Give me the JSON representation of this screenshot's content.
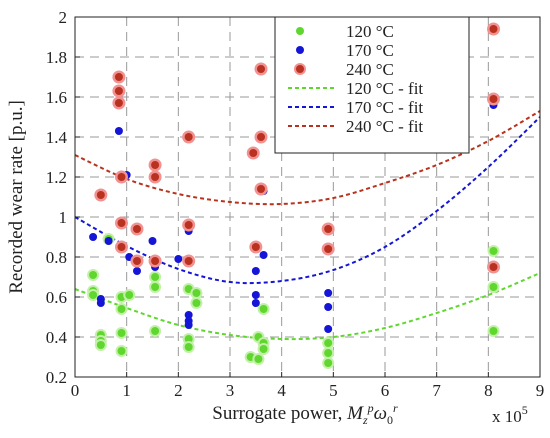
{
  "chart_data": {
    "type": "scatter",
    "title": "",
    "xlabel": "Surrogate power, M_z^p ω_0^r",
    "xlabel_parts": {
      "prefix": "Surrogate power, ",
      "m": "M",
      "sub": "z",
      "sup_p": "p",
      "omega": "ω",
      "sub0": "0",
      "sup_r": "r"
    },
    "ylabel": "Recorded wear rate [p.u.]",
    "x_exponent": {
      "base": "x 10",
      "power": "5"
    },
    "xlim": [
      0,
      9
    ],
    "ylim": [
      0.2,
      2
    ],
    "xticks": [
      "0",
      "1",
      "2",
      "3",
      "4",
      "5",
      "6",
      "7",
      "8",
      "9"
    ],
    "yticks": [
      "0.2",
      "0.4",
      "0.6",
      "0.8",
      "1",
      "1.2",
      "1.4",
      "1.6",
      "1.8",
      "2"
    ],
    "grid": true,
    "legend_position": "top-right",
    "colors": {
      "c120": "#5fd72e",
      "c170": "#1515d8",
      "c240": "#b8321f",
      "marker_halo": "#f29191"
    },
    "series": [
      {
        "name": "120 °C",
        "kind": "points",
        "color_key": "c120",
        "points": [
          [
            0.35,
            0.71
          ],
          [
            0.35,
            0.63
          ],
          [
            0.35,
            0.61
          ],
          [
            0.5,
            0.41
          ],
          [
            0.5,
            0.38
          ],
          [
            0.5,
            0.36
          ],
          [
            0.65,
            0.89
          ],
          [
            0.9,
            0.6
          ],
          [
            0.9,
            0.54
          ],
          [
            0.9,
            0.42
          ],
          [
            0.9,
            0.33
          ],
          [
            1.05,
            0.61
          ],
          [
            1.55,
            0.7
          ],
          [
            1.55,
            0.65
          ],
          [
            1.55,
            0.43
          ],
          [
            2.2,
            0.64
          ],
          [
            2.2,
            0.39
          ],
          [
            2.2,
            0.35
          ],
          [
            2.35,
            0.62
          ],
          [
            2.35,
            0.57
          ],
          [
            3.4,
            0.3
          ],
          [
            3.55,
            0.4
          ],
          [
            3.55,
            0.29
          ],
          [
            3.65,
            0.54
          ],
          [
            3.65,
            0.37
          ],
          [
            3.65,
            0.34
          ],
          [
            4.9,
            0.37
          ],
          [
            4.9,
            0.32
          ],
          [
            4.9,
            0.27
          ],
          [
            8.1,
            0.83
          ],
          [
            8.1,
            0.65
          ],
          [
            8.1,
            0.43
          ]
        ]
      },
      {
        "name": "170 °C",
        "kind": "points",
        "color_key": "c170",
        "points": [
          [
            0.35,
            0.9
          ],
          [
            0.5,
            0.59
          ],
          [
            0.5,
            0.57
          ],
          [
            0.65,
            0.88
          ],
          [
            0.85,
            1.43
          ],
          [
            0.9,
            0.86
          ],
          [
            1.0,
            1.21
          ],
          [
            1.05,
            0.8
          ],
          [
            1.2,
            0.73
          ],
          [
            1.5,
            0.88
          ],
          [
            1.55,
            0.79
          ],
          [
            1.55,
            0.75
          ],
          [
            2.0,
            0.79
          ],
          [
            2.2,
            0.93
          ],
          [
            2.2,
            0.51
          ],
          [
            2.2,
            0.48
          ],
          [
            2.2,
            0.46
          ],
          [
            3.5,
            0.73
          ],
          [
            3.5,
            0.61
          ],
          [
            3.5,
            0.57
          ],
          [
            3.65,
            0.81
          ],
          [
            3.65,
            1.13
          ],
          [
            4.9,
            0.62
          ],
          [
            4.9,
            0.55
          ],
          [
            4.9,
            0.44
          ],
          [
            8.1,
            1.56
          ]
        ]
      },
      {
        "name": "240 °C",
        "kind": "points",
        "color_key": "c240",
        "points": [
          [
            0.5,
            1.11
          ],
          [
            0.85,
            1.7
          ],
          [
            0.85,
            1.63
          ],
          [
            0.85,
            1.57
          ],
          [
            0.9,
            1.2
          ],
          [
            0.9,
            0.97
          ],
          [
            0.9,
            0.85
          ],
          [
            1.2,
            0.94
          ],
          [
            1.2,
            0.78
          ],
          [
            1.55,
            1.26
          ],
          [
            1.55,
            1.2
          ],
          [
            1.55,
            0.78
          ],
          [
            2.2,
            1.4
          ],
          [
            2.2,
            0.96
          ],
          [
            2.2,
            0.78
          ],
          [
            3.45,
            1.32
          ],
          [
            3.5,
            0.85
          ],
          [
            3.6,
            1.74
          ],
          [
            3.6,
            1.4
          ],
          [
            3.6,
            1.14
          ],
          [
            4.9,
            0.94
          ],
          [
            4.9,
            0.84
          ],
          [
            8.1,
            1.94
          ],
          [
            8.1,
            1.59
          ],
          [
            8.1,
            0.75
          ]
        ]
      },
      {
        "name": "120 °C - fit",
        "kind": "fit",
        "color_key": "c120",
        "x": [
          0,
          1,
          2,
          3,
          4,
          5,
          6,
          7,
          8,
          9
        ],
        "y": [
          0.64,
          0.545,
          0.46,
          0.41,
          0.39,
          0.4,
          0.445,
          0.52,
          0.61,
          0.72
        ]
      },
      {
        "name": "170 °C - fit",
        "kind": "fit",
        "color_key": "c170",
        "x": [
          0,
          1,
          2,
          3,
          4,
          5,
          6,
          7,
          8,
          9
        ],
        "y": [
          1.0,
          0.855,
          0.74,
          0.675,
          0.68,
          0.735,
          0.85,
          1.03,
          1.25,
          1.5
        ]
      },
      {
        "name": "240 °C - fit",
        "kind": "fit",
        "color_key": "c240",
        "x": [
          0,
          1,
          2,
          3,
          4,
          5,
          6,
          7,
          8,
          9
        ],
        "y": [
          1.31,
          1.19,
          1.115,
          1.075,
          1.065,
          1.095,
          1.17,
          1.26,
          1.38,
          1.53
        ]
      }
    ]
  }
}
